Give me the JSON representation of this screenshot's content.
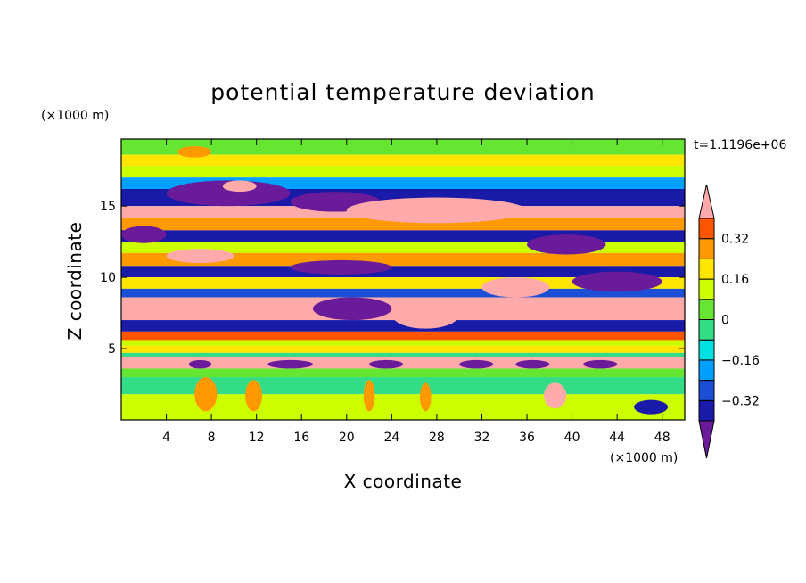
{
  "chart_data": {
    "type": "heatmap",
    "title": "potential temperature deviation",
    "xlabel": "X coordinate",
    "ylabel": "Z coordinate",
    "x_unit": "(×1000 m)",
    "y_unit": "(×1000 m)",
    "time_label": "t=1.1196e+06",
    "xlim": [
      0,
      50
    ],
    "ylim": [
      0,
      19.7
    ],
    "x_ticks": [
      4,
      8,
      12,
      16,
      20,
      24,
      28,
      32,
      36,
      40,
      44,
      48
    ],
    "y_ticks": [
      5,
      10,
      15
    ],
    "grid": false,
    "colorbar": {
      "placement": "right",
      "levels": [
        -0.4,
        -0.32,
        -0.24,
        -0.16,
        -0.08,
        0,
        0.08,
        0.16,
        0.24,
        0.32,
        0.4
      ],
      "tick_values": [
        0.32,
        0.16,
        0,
        -0.16,
        -0.32
      ],
      "tick_labels": [
        "0.32",
        "0.16",
        "0",
        "−0.16",
        "−0.32"
      ],
      "colors": [
        "#6a1b9a",
        "#1a1aa8",
        "#1c4fd6",
        "#00a0ff",
        "#00e0e0",
        "#33dd88",
        "#66e632",
        "#ccff00",
        "#ffe500",
        "#ff9900",
        "#ff5500",
        "#ff2020",
        "#ffaaaa"
      ]
    },
    "bands": [
      {
        "z": [
          18.6,
          19.7
        ],
        "value": 0.05
      },
      {
        "z": [
          17.8,
          18.6
        ],
        "value": 0.2
      },
      {
        "z": [
          17.0,
          17.8
        ],
        "value": 0.1
      },
      {
        "z": [
          16.2,
          17.0
        ],
        "value": -0.2
      },
      {
        "z": [
          15.0,
          16.2
        ],
        "value": -0.38
      },
      {
        "z": [
          14.2,
          15.0
        ],
        "value": 0.42
      },
      {
        "z": [
          13.3,
          14.2
        ],
        "value": 0.25
      },
      {
        "z": [
          12.5,
          13.3
        ],
        "value": -0.35
      },
      {
        "z": [
          11.7,
          12.5
        ],
        "value": 0.1
      },
      {
        "z": [
          10.8,
          11.7
        ],
        "value": 0.3
      },
      {
        "z": [
          10.0,
          10.8
        ],
        "value": -0.34
      },
      {
        "z": [
          9.2,
          10.0
        ],
        "value": 0.2
      },
      {
        "z": [
          8.6,
          9.2
        ],
        "value": -0.25
      },
      {
        "z": [
          7.0,
          8.6
        ],
        "value": 0.42
      },
      {
        "z": [
          6.2,
          7.0
        ],
        "value": -0.4
      },
      {
        "z": [
          5.6,
          6.2
        ],
        "value": 0.32
      },
      {
        "z": [
          5.2,
          5.6
        ],
        "value": 0.15
      },
      {
        "z": [
          4.7,
          5.2
        ],
        "value": 0.22
      },
      {
        "z": [
          4.4,
          4.7
        ],
        "value": -0.05
      },
      {
        "z": [
          3.6,
          4.4
        ],
        "value": 0.42
      },
      {
        "z": [
          3.0,
          3.6
        ],
        "value": 0.05
      },
      {
        "z": [
          1.8,
          3.0
        ],
        "value": -0.05
      },
      {
        "z": [
          0.0,
          1.8
        ],
        "value": 0.08
      }
    ],
    "blobs": [
      {
        "x": [
          4,
          15
        ],
        "z": [
          15.0,
          16.8
        ],
        "value": -0.42
      },
      {
        "x": [
          15,
          23
        ],
        "z": [
          14.6,
          16.0
        ],
        "value": -0.42
      },
      {
        "x": [
          20,
          36
        ],
        "z": [
          13.8,
          15.6
        ],
        "value": 0.42
      },
      {
        "x": [
          9,
          12
        ],
        "z": [
          16.0,
          16.8
        ],
        "value": 0.42
      },
      {
        "x": [
          36,
          43
        ],
        "z": [
          11.6,
          13.0
        ],
        "value": -0.42
      },
      {
        "x": [
          32,
          38
        ],
        "z": [
          8.6,
          10.0
        ],
        "value": 0.42
      },
      {
        "x": [
          40,
          48
        ],
        "z": [
          9.0,
          10.4
        ],
        "value": -0.42
      },
      {
        "x": [
          0,
          4
        ],
        "z": [
          12.4,
          13.6
        ],
        "value": -0.42
      },
      {
        "x": [
          15,
          24
        ],
        "z": [
          10.2,
          11.2
        ],
        "value": -0.42
      },
      {
        "x": [
          4,
          10
        ],
        "z": [
          11.0,
          12.0
        ],
        "value": 0.42
      },
      {
        "x": [
          24,
          30
        ],
        "z": [
          6.4,
          8.4
        ],
        "value": 0.42
      },
      {
        "x": [
          17,
          24
        ],
        "z": [
          7.0,
          8.6
        ],
        "value": -0.42
      },
      {
        "x": [
          6,
          8
        ],
        "z": [
          3.6,
          4.2
        ],
        "value": -0.42
      },
      {
        "x": [
          13,
          17
        ],
        "z": [
          3.6,
          4.2
        ],
        "value": -0.42
      },
      {
        "x": [
          22,
          25
        ],
        "z": [
          3.6,
          4.2
        ],
        "value": -0.42
      },
      {
        "x": [
          30,
          33
        ],
        "z": [
          3.6,
          4.2
        ],
        "value": -0.42
      },
      {
        "x": [
          35,
          38
        ],
        "z": [
          3.6,
          4.2
        ],
        "value": -0.42
      },
      {
        "x": [
          41,
          44
        ],
        "z": [
          3.6,
          4.2
        ],
        "value": -0.42
      },
      {
        "x": [
          37.5,
          39.5
        ],
        "z": [
          0.8,
          2.6
        ],
        "value": 0.42
      },
      {
        "x": [
          6.5,
          8.5
        ],
        "z": [
          0.6,
          3.0
        ],
        "value": 0.3
      },
      {
        "x": [
          11,
          12.5
        ],
        "z": [
          0.6,
          2.8
        ],
        "value": 0.3
      },
      {
        "x": [
          21.5,
          22.5
        ],
        "z": [
          0.6,
          2.8
        ],
        "value": 0.3
      },
      {
        "x": [
          26.5,
          27.5
        ],
        "z": [
          0.6,
          2.6
        ],
        "value": 0.3
      },
      {
        "x": [
          45.5,
          48.5
        ],
        "z": [
          0.4,
          1.4
        ],
        "value": -0.35
      },
      {
        "x": [
          5,
          8
        ],
        "z": [
          18.4,
          19.2
        ],
        "value": 0.25
      }
    ]
  }
}
